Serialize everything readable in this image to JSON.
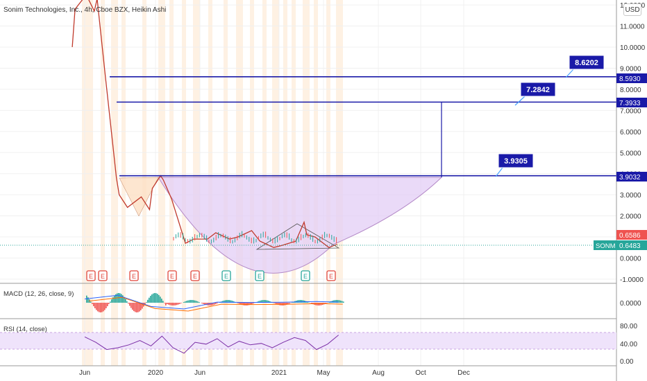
{
  "header": {
    "title": "Sonim Technologies, Inc., 4h, Cboe BZX, Heikin Ashi",
    "currency": "USD"
  },
  "colors": {
    "level_line": "#1a1aa8",
    "callout_bg": "#1a1aa8",
    "cup_fill": "#e3cdf5",
    "cup_stroke": "#b48ac8",
    "earnings_red": "#e0453a",
    "earnings_green": "#26a69a",
    "session_shade": "#fde6cc",
    "rsi_band": "#efe3fb",
    "rsi_line": "#7b2ea6",
    "macd_line": "#2962ff",
    "signal_line": "#ff6d00",
    "price_line": "#c0392b"
  },
  "price_axis": {
    "ticks": [
      "12.0000",
      "11.0000",
      "10.0000",
      "9.0000",
      "8.0000",
      "7.0000",
      "6.0000",
      "5.0000",
      "4.0000",
      "3.0000",
      "2.0000",
      "1.0000",
      "0.0000",
      "-1.0000"
    ],
    "labels": [
      {
        "text": "8.5930",
        "color": "#1a1aa8"
      },
      {
        "text": "7.3933",
        "color": "#1a1aa8"
      },
      {
        "text": "3.9032",
        "color": "#1a1aa8"
      },
      {
        "text": "0.6586",
        "color": "#ef5350"
      },
      {
        "text": "0.6483",
        "color": "#26a69a"
      }
    ],
    "symbol_tag": "SONM"
  },
  "callouts": [
    "8.6202",
    "7.2842",
    "3.9305"
  ],
  "earnings_markers": [
    "E",
    "E",
    "E",
    "E",
    "E",
    "E",
    "E",
    "E",
    "E"
  ],
  "macd_panel": {
    "title": "MACD (12, 26, close, 9)",
    "ticks": [
      "0.0000"
    ]
  },
  "rsi_panel": {
    "title": "RSI (14, close)",
    "ticks": [
      "80.00",
      "40.00",
      "0.00"
    ]
  },
  "time_axis": [
    "Jun",
    "2020",
    "Jun",
    "2021",
    "May",
    "Aug",
    "Oct",
    "Dec"
  ],
  "chart_data": {
    "type": "line",
    "title": "Sonim Technologies, Inc., 4h, Cboe BZX, Heikin Ashi",
    "x_range": [
      "2019-05",
      "2021-12"
    ],
    "ylim": [
      -1,
      12
    ],
    "scale": "linear",
    "series": [
      {
        "x": [
          "2019-05",
          "2019-05",
          "2019-06",
          "2019-06",
          "2019-07",
          "2019-07",
          "2019-08",
          "2019-08",
          "2019-09",
          "2019-09",
          "2019-10",
          "2019-11",
          "2019-12",
          "2019-12",
          "2020-01",
          "2020-01",
          "2020-02",
          "2020-03",
          "2020-04",
          "2020-05",
          "2020-06",
          "2020-07",
          "2020-08",
          "2020-09",
          "2020-10",
          "2020-11",
          "2020-12",
          "2021-01",
          "2021-02",
          "2021-02",
          "2021-03",
          "2021-04",
          "2021-05"
        ],
        "values": [
          10.0,
          11.8,
          12.3,
          12.5,
          11.7,
          12.3,
          8.6,
          7.4,
          3.8,
          3.0,
          2.4,
          2.9,
          2.3,
          3.3,
          3.9,
          3.7,
          2.8,
          0.7,
          0.9,
          0.9,
          1.2,
          0.9,
          1.0,
          1.3,
          0.8,
          0.5,
          0.6,
          0.8,
          1.7,
          1.1,
          1.0,
          0.5,
          0.65
        ]
      }
    ],
    "levels": [
      8.593,
      7.3933,
      3.9032
    ],
    "targets": [
      8.6202,
      7.2842,
      3.9305
    ],
    "last_price": 0.6586,
    "close_price": 0.6483,
    "macd": {
      "x": [
        "2019-06",
        "2019-09",
        "2019-12",
        "2020-03",
        "2020-06",
        "2020-09",
        "2020-12",
        "2021-03",
        "2021-05"
      ],
      "values": [
        0.3,
        0.6,
        -0.3,
        -0.5,
        0.05,
        0.02,
        0.04,
        0.1,
        0.05
      ],
      "ticks": [
        0.0
      ]
    },
    "rsi": {
      "x": [
        "2019-06",
        "2019-07",
        "2019-08",
        "2019-09",
        "2019-10",
        "2019-11",
        "2019-12",
        "2020-01",
        "2020-02",
        "2020-03",
        "2020-04",
        "2020-05",
        "2020-06",
        "2020-07",
        "2020-08",
        "2020-09",
        "2020-10",
        "2020-11",
        "2020-12",
        "2021-01",
        "2021-02",
        "2021-03",
        "2021-04",
        "2021-05"
      ],
      "values": [
        70,
        55,
        35,
        40,
        48,
        60,
        45,
        72,
        40,
        25,
        55,
        50,
        65,
        42,
        58,
        48,
        52,
        40,
        55,
        68,
        60,
        35,
        50,
        75
      ],
      "ylim": [
        0,
        100
      ],
      "ticks": [
        80,
        40,
        0
      ],
      "band": [
        30,
        70
      ]
    },
    "grid": true,
    "legend": "top-left"
  }
}
